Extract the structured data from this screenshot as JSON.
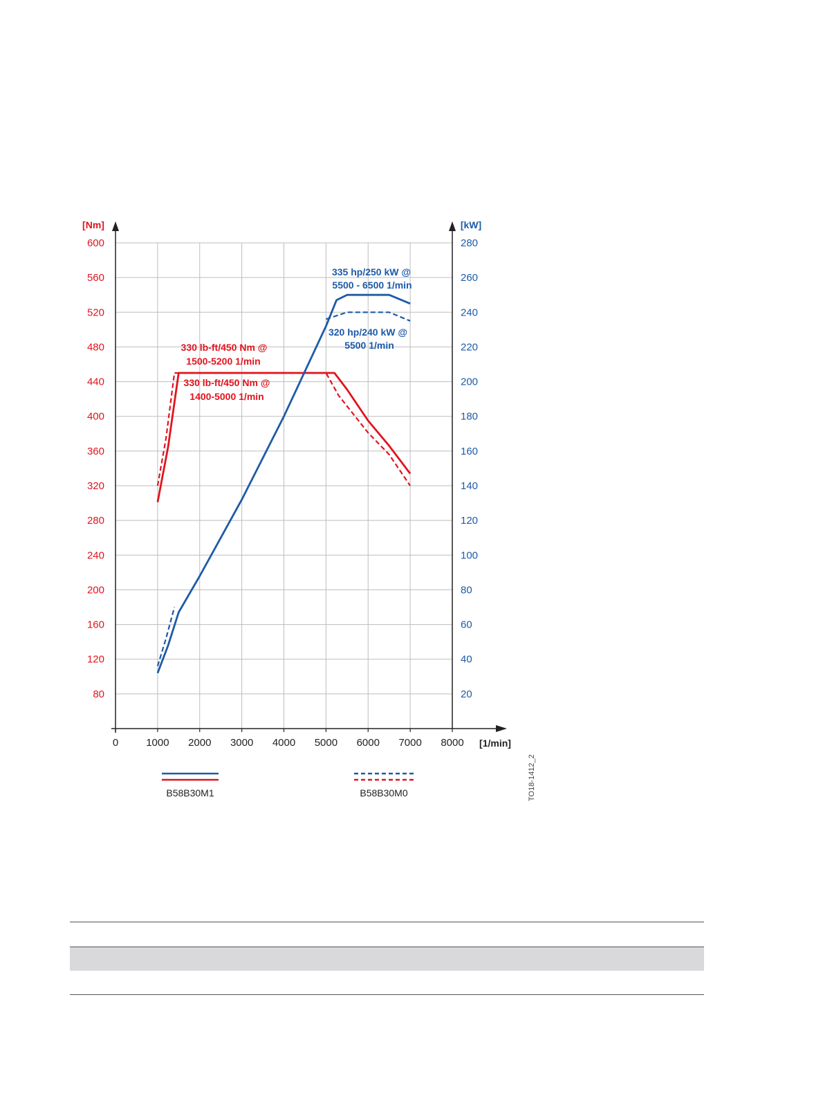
{
  "chart_data": {
    "type": "line",
    "x_axis": {
      "unit": "[1/min]",
      "range": [
        0,
        8000
      ],
      "ticks": [
        0,
        1000,
        2000,
        3000,
        4000,
        5000,
        6000,
        7000,
        8000
      ]
    },
    "y_left": {
      "unit": "[Nm]",
      "range": [
        40,
        600
      ],
      "ticks": [
        80,
        120,
        160,
        200,
        240,
        280,
        320,
        360,
        400,
        440,
        480,
        520,
        560,
        600
      ],
      "color": "#e0141e"
    },
    "y_right": {
      "unit": "[kW]",
      "range": [
        0,
        280
      ],
      "ticks": [
        20,
        40,
        60,
        80,
        100,
        120,
        140,
        160,
        180,
        200,
        220,
        240,
        260,
        280
      ],
      "color": "#1e5aa8"
    },
    "grid": true,
    "series": [
      {
        "engine": "B58B30M1",
        "quantity": "torque",
        "axis": "left",
        "style": "solid",
        "color": "#e0141e",
        "points": [
          [
            1000,
            301
          ],
          [
            1250,
            365
          ],
          [
            1500,
            450
          ],
          [
            5200,
            450
          ],
          [
            5500,
            431
          ],
          [
            6000,
            395
          ],
          [
            6500,
            366
          ],
          [
            7000,
            334
          ]
        ]
      },
      {
        "engine": "B58B30M0",
        "quantity": "torque",
        "axis": "left",
        "style": "dashed",
        "color": "#e0141e",
        "points": [
          [
            1000,
            320
          ],
          [
            1200,
            375
          ],
          [
            1400,
            450
          ],
          [
            5000,
            450
          ],
          [
            5300,
            424
          ],
          [
            6000,
            381
          ],
          [
            6500,
            356
          ],
          [
            7000,
            320
          ]
        ]
      },
      {
        "engine": "B58B30M1",
        "quantity": "power",
        "axis": "right",
        "style": "solid",
        "color": "#1e5aa8",
        "points": [
          [
            1000,
            32
          ],
          [
            1250,
            48
          ],
          [
            1500,
            67
          ],
          [
            2000,
            88
          ],
          [
            3000,
            132
          ],
          [
            4000,
            180
          ],
          [
            5000,
            232
          ],
          [
            5250,
            247
          ],
          [
            5500,
            250
          ],
          [
            6500,
            250
          ],
          [
            7000,
            245
          ]
        ]
      },
      {
        "engine": "B58B30M0",
        "quantity": "power",
        "axis": "right",
        "style": "dashed",
        "color": "#1e5aa8",
        "points": [
          [
            1000,
            36
          ],
          [
            1200,
            52
          ],
          [
            1400,
            70
          ]
        ]
      },
      {
        "engine": "B58B30M0",
        "quantity": "power",
        "axis": "right",
        "style": "dashed",
        "color": "#1e5aa8",
        "points": [
          [
            5000,
            236
          ],
          [
            5500,
            240
          ],
          [
            6500,
            240
          ],
          [
            7000,
            235
          ]
        ]
      }
    ],
    "annotations": [
      {
        "id": "power_m1",
        "lines": [
          "335 hp/250 kW @",
          "5500 - 6500  1/min"
        ],
        "color": "#1e5aa8"
      },
      {
        "id": "power_m0",
        "lines": [
          "320 hp/240 kW @",
          "5500 1/min"
        ],
        "color": "#1e5aa8"
      },
      {
        "id": "torque_m1",
        "lines": [
          "330 lb-ft/450 Nm @",
          "1500-5200 1/min"
        ],
        "color": "#e0141e"
      },
      {
        "id": "torque_m0",
        "lines": [
          "330 lb-ft/450 Nm @",
          "1400-5000 1/min"
        ],
        "color": "#e0141e"
      }
    ],
    "legend": {
      "placement": "bottom",
      "entries": [
        {
          "label": "B58B30M1",
          "style": "solid"
        },
        {
          "label": "B58B30M0",
          "style": "dashed"
        }
      ]
    },
    "figure_id": "TO18-1412_2"
  }
}
